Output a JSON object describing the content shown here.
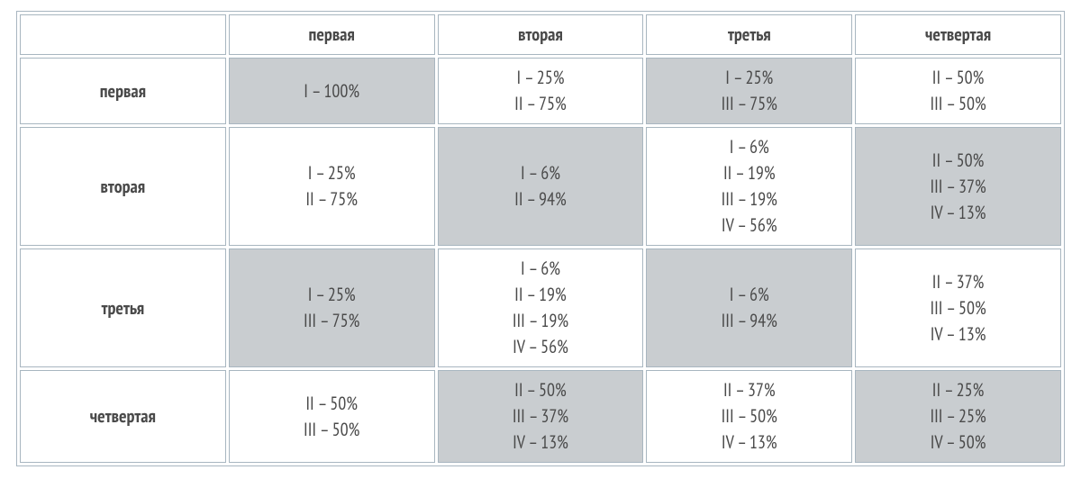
{
  "type": "table",
  "background_color": "#ffffff",
  "border_color": "#a8b6c0",
  "shade_color": "#c9cdd0",
  "header_text_color": "#0a5fb3",
  "row_header_text_color": "#d8202a",
  "cell_text_color": "#4a4a4a",
  "font_size_pt": 15,
  "columns": [
    "первая",
    "вторая",
    "третья",
    "четвертая"
  ],
  "rows": [
    {
      "label": "первая",
      "cells": [
        {
          "lines": [
            "I – 100%"
          ],
          "shaded": true
        },
        {
          "lines": [
            "I – 25%",
            "II – 75%"
          ],
          "shaded": false
        },
        {
          "lines": [
            "I – 25%",
            "III – 75%"
          ],
          "shaded": true
        },
        {
          "lines": [
            "II – 50%",
            "III – 50%"
          ],
          "shaded": false
        }
      ]
    },
    {
      "label": "вторая",
      "cells": [
        {
          "lines": [
            "I – 25%",
            "II – 75%"
          ],
          "shaded": false
        },
        {
          "lines": [
            "I – 6%",
            "II – 94%"
          ],
          "shaded": true
        },
        {
          "lines": [
            "I – 6%",
            "II – 19%",
            "III – 19%",
            "IV – 56%"
          ],
          "shaded": false
        },
        {
          "lines": [
            "II – 50%",
            "III – 37%",
            "IV – 13%"
          ],
          "shaded": true
        }
      ]
    },
    {
      "label": "третья",
      "cells": [
        {
          "lines": [
            "I – 25%",
            "III – 75%"
          ],
          "shaded": true
        },
        {
          "lines": [
            "I – 6%",
            "II – 19%",
            "III – 19%",
            "IV – 56%"
          ],
          "shaded": false
        },
        {
          "lines": [
            "I – 6%",
            "III – 94%"
          ],
          "shaded": true
        },
        {
          "lines": [
            "II – 37%",
            "III – 50%",
            "IV – 13%"
          ],
          "shaded": false
        }
      ]
    },
    {
      "label": "четвертая",
      "cells": [
        {
          "lines": [
            "II – 50%",
            "III – 50%"
          ],
          "shaded": false
        },
        {
          "lines": [
            "II – 50%",
            "III – 37%",
            "IV – 13%"
          ],
          "shaded": true
        },
        {
          "lines": [
            "II – 37%",
            "III – 50%",
            "IV – 13%"
          ],
          "shaded": false
        },
        {
          "lines": [
            "II – 25%",
            "III – 25%",
            "IV – 50%"
          ],
          "shaded": true
        }
      ]
    }
  ]
}
